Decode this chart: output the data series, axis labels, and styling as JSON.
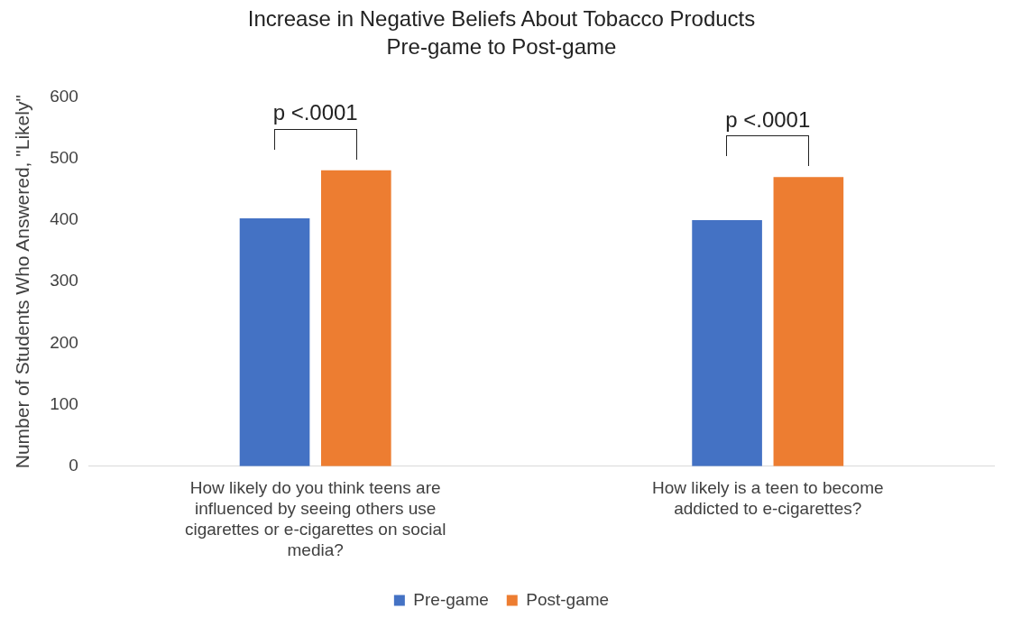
{
  "chart_data": {
    "type": "bar",
    "title": "Increase in Negative Beliefs About Tobacco Products",
    "subtitle": "Pre-game to Post-game",
    "ylabel": "Number of Students Who Answered, \"Likely\"",
    "categories": [
      "How likely do you think teens are influenced by seeing others use cigarettes or e-cigarettes on social media?",
      "How likely is a teen to become addicted to e-cigarettes?"
    ],
    "series": [
      {
        "name": "Pre-game",
        "color": "#4472c4",
        "values": [
          403,
          400
        ]
      },
      {
        "name": "Post-game",
        "color": "#ed7d31",
        "values": [
          481,
          470
        ]
      }
    ],
    "ylim": [
      0,
      600
    ],
    "yticks": [
      0,
      100,
      200,
      300,
      400,
      500,
      600
    ],
    "grid": false,
    "legend": "bottom",
    "annotations": [
      "p <.0001",
      "p <.0001"
    ]
  }
}
